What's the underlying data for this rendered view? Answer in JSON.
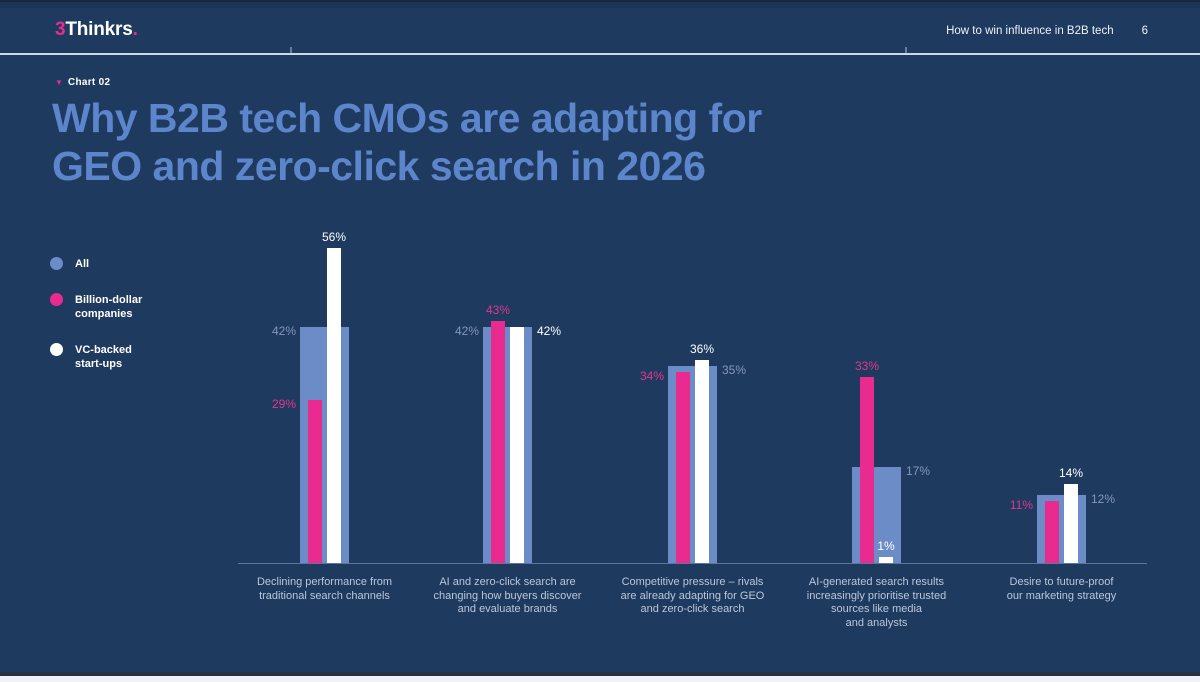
{
  "header": {
    "logo": {
      "mark": "3",
      "name": "Thinkrs",
      "dot": "."
    },
    "right_text": "How to win influence in B2B tech",
    "page_number": "6"
  },
  "slide": {
    "kicker": {
      "marker": "▼",
      "label": "Chart 02"
    },
    "title_line1": "Why B2B tech CMOs are adapting for",
    "title_line2": "GEO and zero-click search in 2026"
  },
  "legend": {
    "items": [
      {
        "name": "All",
        "label": "All",
        "color": "#6c8cc8"
      },
      {
        "name": "Billion-dollar companies",
        "label": "Billion-dollar\ncompanies",
        "color": "#e92b90"
      },
      {
        "name": "VC-backed start-ups",
        "label": "VC-backed\nstart-ups",
        "color": "#ffffff"
      }
    ]
  },
  "chart_data": {
    "type": "bar",
    "title": "Why B2B tech CMOs are adapting for GEO and zero-click search in 2026",
    "xlabel": "",
    "ylabel": "",
    "ylim": [
      0,
      60
    ],
    "grid": false,
    "legend_position": "left",
    "value_suffix": "%",
    "categories": [
      "Declining performance from\ntraditional search channels",
      "AI and zero-click search are\nchanging how buyers discover\nand evaluate brands",
      "Competitive pressure – rivals\nare already adapting for GEO\nand zero-click search",
      "AI-generated search results\nincreasingly prioritise trusted\nsources like media\nand analysts",
      "Desire to future-proof\nour marketing strategy"
    ],
    "series": [
      {
        "name": "All",
        "color": "#6c8cc8",
        "label_color": "#8496be",
        "values": [
          42,
          42,
          35,
          17,
          12
        ],
        "label_placements": [
          "left",
          "left",
          "right",
          "right",
          "right"
        ]
      },
      {
        "name": "Billion-dollar companies",
        "color": "#e92b90",
        "label_color": "#e0368f",
        "values": [
          29,
          43,
          34,
          33,
          11
        ],
        "label_placements": [
          "left",
          "top",
          "left",
          "top",
          "left"
        ]
      },
      {
        "name": "VC-backed start-ups",
        "color": "#ffffff",
        "label_color": "#ffffff",
        "values": [
          56,
          42,
          36,
          1,
          14
        ],
        "label_placements": [
          "top",
          "right",
          "top",
          "top",
          "top"
        ]
      }
    ],
    "colors": {
      "background": "#1e3a5e",
      "accent_pink": "#e92b90",
      "accent_blue": "#6c8cc8",
      "title": "#5c85cb"
    }
  }
}
